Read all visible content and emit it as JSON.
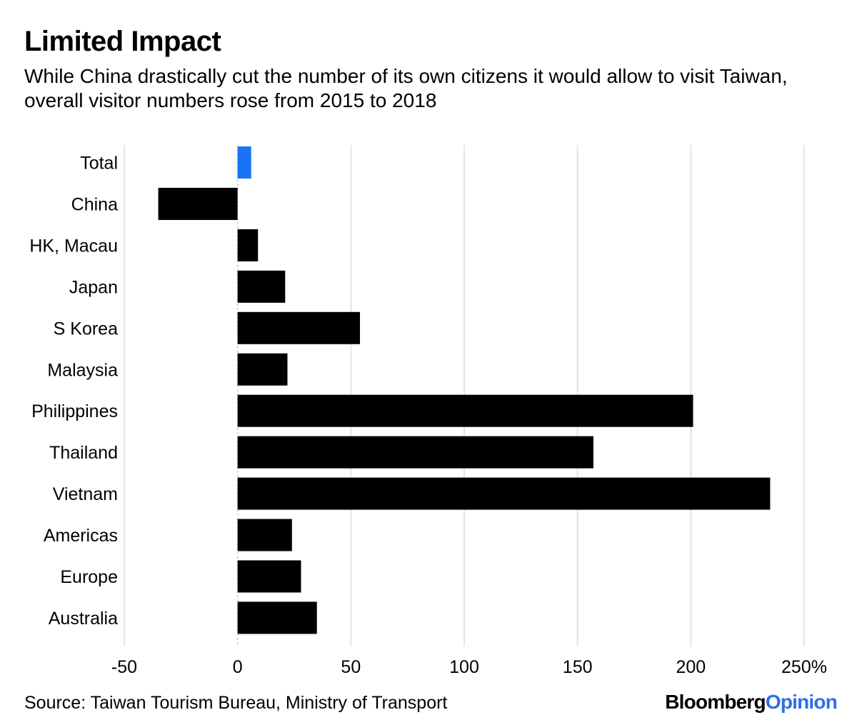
{
  "header": {
    "title": "Limited Impact",
    "subtitle": "While China drastically cut the number of its own citizens it would allow to visit Taiwan, overall visitor numbers rose from 2015 to 2018"
  },
  "footer": {
    "source": "Source: Taiwan Tourism Bureau, Ministry of Transport",
    "brand_primary": "Bloomberg",
    "brand_secondary": "Opinion"
  },
  "colors": {
    "highlight": "#1a73f5",
    "bar": "#000000",
    "grid": "#e4e4e4",
    "brand_accent": "#2c6fe8"
  },
  "chart_data": {
    "type": "bar",
    "orientation": "horizontal",
    "categories": [
      "Total",
      "China",
      "HK, Macau",
      "Japan",
      "S Korea",
      "Malaysia",
      "Philippines",
      "Thailand",
      "Vietnam",
      "Americas",
      "Europe",
      "Australia"
    ],
    "values": [
      6,
      -35,
      9,
      21,
      54,
      22,
      201,
      157,
      235,
      24,
      28,
      35
    ],
    "highlight_index": 0,
    "xlim": [
      -50,
      250
    ],
    "x_ticks": [
      {
        "value": -50,
        "label": "-50"
      },
      {
        "value": 0,
        "label": "0"
      },
      {
        "value": 50,
        "label": "50"
      },
      {
        "value": 100,
        "label": "100"
      },
      {
        "value": 150,
        "label": "150"
      },
      {
        "value": 200,
        "label": "200"
      },
      {
        "value": 250,
        "label": "250%"
      }
    ],
    "grid": true
  }
}
